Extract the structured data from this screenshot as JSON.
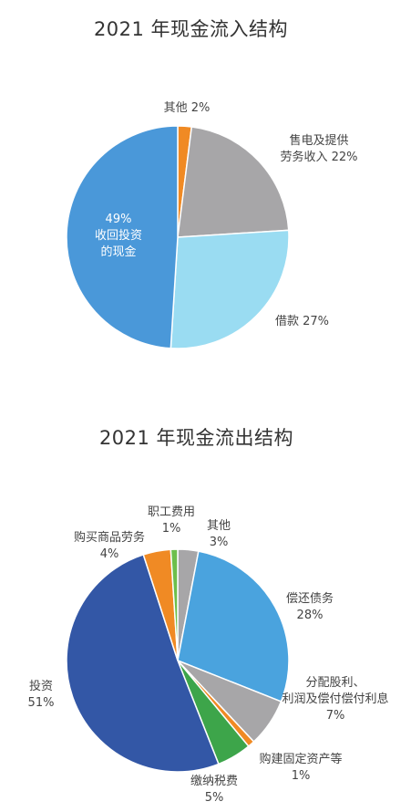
{
  "chart_data": [
    {
      "type": "pie",
      "title": "2021 年现金流入结构",
      "slices": [
        {
          "label": "其他",
          "value": 2,
          "pct": "2%",
          "color": "#f08a24"
        },
        {
          "label": "售电及提供劳务收入",
          "lines": [
            "售电及提供",
            "劳务收入 22%"
          ],
          "value": 22,
          "pct": "22%",
          "color": "#a7a6a8"
        },
        {
          "label": "借款",
          "value": 27,
          "pct": "27%",
          "color": "#9adcf2"
        },
        {
          "label": "收回投资的现金",
          "lines": [
            "49%",
            "收回投资",
            "的现金"
          ],
          "value": 49,
          "pct": "49%",
          "color": "#4a98d9"
        }
      ]
    },
    {
      "type": "pie",
      "title": "2021 年现金流出结构",
      "slices": [
        {
          "label": "其他",
          "lines": [
            "其他",
            "3%"
          ],
          "value": 3,
          "pct": "3%",
          "color": "#a7a6a8"
        },
        {
          "label": "偿还债务",
          "lines": [
            "偿还债务",
            "28%"
          ],
          "value": 28,
          "pct": "28%",
          "color": "#4aa3de"
        },
        {
          "label": "分配股利、利润及偿付偿付利息",
          "lines": [
            "分配股利、",
            "利润及偿付偿付利息",
            "7%"
          ],
          "value": 7,
          "pct": "7%",
          "color": "#a7a6a8"
        },
        {
          "label": "购建固定资产等",
          "lines": [
            "购建固定资产等",
            "1%"
          ],
          "value": 1,
          "pct": "1%",
          "color": "#f08a24"
        },
        {
          "label": "缴纳税费",
          "lines": [
            "缴纳税费",
            "5%"
          ],
          "value": 5,
          "pct": "5%",
          "color": "#3da54a"
        },
        {
          "label": "投资",
          "lines": [
            "投资",
            "51%"
          ],
          "value": 51,
          "pct": "51%",
          "color": "#3357a6"
        },
        {
          "label": "购买商品劳务",
          "lines": [
            "购买商品劳务",
            "4%"
          ],
          "value": 4,
          "pct": "4%",
          "color": "#f08a24"
        },
        {
          "label": "职工费用",
          "lines": [
            "职工费用",
            "1%"
          ],
          "value": 1,
          "pct": "1%",
          "color": "#6dbf4b"
        }
      ]
    }
  ]
}
